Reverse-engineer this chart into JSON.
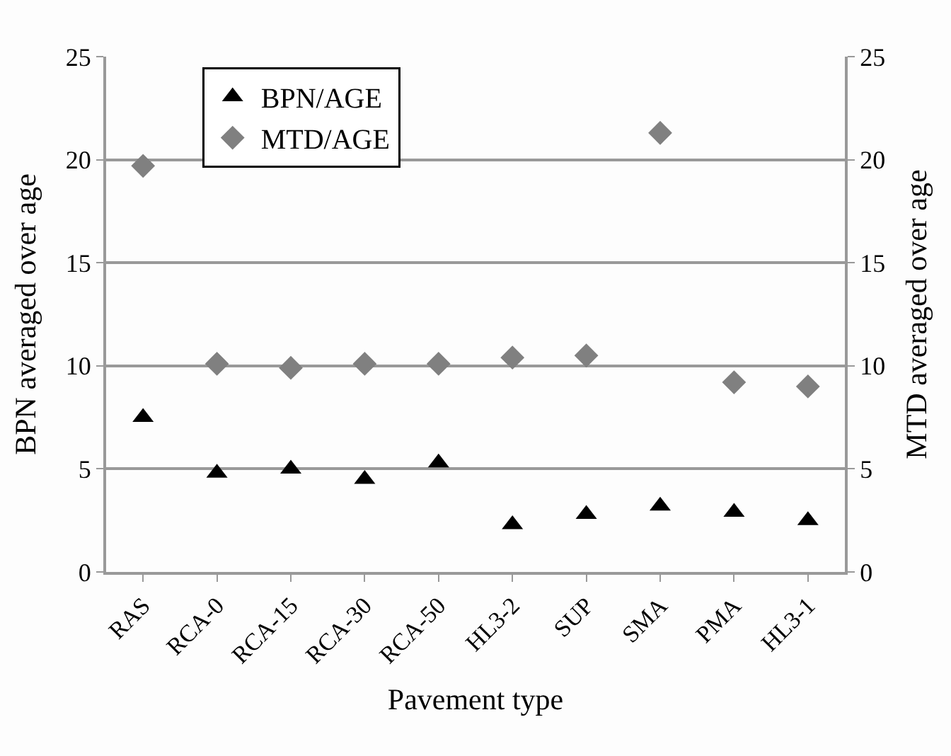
{
  "chart_data": {
    "type": "scatter",
    "xlabel": "Pavement type",
    "ylabel": "BPN averaged over age",
    "y2label": "MTD averaged over age",
    "categories": [
      "RAS",
      "RCA-0",
      "RCA-15",
      "RCA-30",
      "RCA-50",
      "HL3-2",
      "SUP",
      "SMA",
      "PMA",
      "HL3-1"
    ],
    "series": [
      {
        "name": "BPN/AGE",
        "color": "#000000",
        "marker": "triangle",
        "values": [
          7.5,
          4.8,
          5.0,
          4.5,
          5.3,
          2.3,
          2.8,
          3.2,
          2.9,
          2.5
        ]
      },
      {
        "name": "MTD/AGE",
        "color": "#808080",
        "marker": "diamond",
        "axis": "y2",
        "values": [
          19.7,
          10.1,
          9.9,
          10.1,
          10.1,
          10.4,
          10.5,
          21.3,
          9.2,
          9.0
        ]
      }
    ],
    "ylim": [
      0,
      25
    ],
    "yticks": [
      0,
      5,
      10,
      15,
      20,
      25
    ],
    "y2lim": [
      0,
      25
    ],
    "y2ticks": [
      0,
      5,
      10,
      15,
      20,
      25
    ],
    "grid": "y",
    "legend": "top left"
  }
}
